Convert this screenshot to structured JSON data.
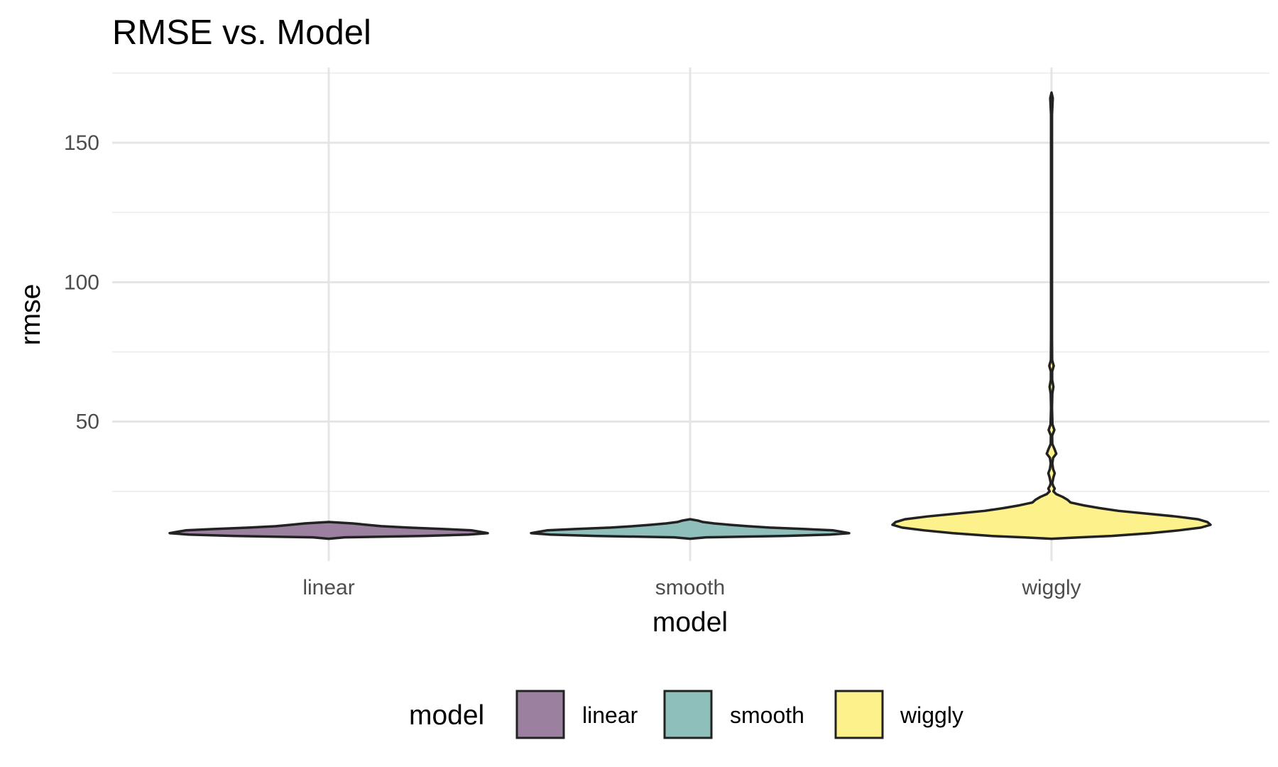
{
  "chart_data": {
    "type": "violin",
    "title": "RMSE vs. Model",
    "xlabel": "model",
    "ylabel": "rmse",
    "categories": [
      "linear",
      "smooth",
      "wiggly"
    ],
    "ylim": [
      0,
      177
    ],
    "yticks": [
      50,
      100,
      150
    ],
    "grid": true,
    "legend": {
      "title": "model",
      "position": "bottom",
      "entries": [
        "linear",
        "smooth",
        "wiggly"
      ]
    },
    "colors": {
      "linear": "#9b80a0",
      "smooth": "#8ebfbb",
      "wiggly": "#fdf18b",
      "outline": "#222222",
      "grid_major": "#e5e5e5",
      "grid_minor": "#efefef"
    },
    "series": [
      {
        "name": "linear",
        "density": [
          [
            8.0,
            0.0
          ],
          [
            8.5,
            0.1
          ],
          [
            9.0,
            0.6
          ],
          [
            9.5,
            0.88
          ],
          [
            10.0,
            1.0
          ],
          [
            10.5,
            0.95
          ],
          [
            11.0,
            0.9
          ],
          [
            11.5,
            0.72
          ],
          [
            12.0,
            0.5
          ],
          [
            12.5,
            0.33
          ],
          [
            13.0,
            0.24
          ],
          [
            13.5,
            0.15
          ],
          [
            14.0,
            0.0
          ]
        ]
      },
      {
        "name": "smooth",
        "density": [
          [
            8.0,
            0.0
          ],
          [
            8.5,
            0.1
          ],
          [
            9.0,
            0.6
          ],
          [
            9.5,
            0.88
          ],
          [
            10.0,
            1.0
          ],
          [
            10.5,
            0.95
          ],
          [
            11.0,
            0.9
          ],
          [
            11.5,
            0.72
          ],
          [
            12.0,
            0.5
          ],
          [
            12.5,
            0.36
          ],
          [
            13.0,
            0.25
          ],
          [
            13.5,
            0.15
          ],
          [
            14.0,
            0.08
          ],
          [
            14.5,
            0.05
          ],
          [
            15.0,
            0.0
          ]
        ]
      },
      {
        "name": "wiggly",
        "density": [
          [
            8.0,
            0.0
          ],
          [
            8.5,
            0.18
          ],
          [
            9.0,
            0.38
          ],
          [
            10.0,
            0.62
          ],
          [
            11.0,
            0.8
          ],
          [
            12.0,
            0.94
          ],
          [
            13.0,
            1.0
          ],
          [
            14.0,
            0.98
          ],
          [
            15.0,
            0.92
          ],
          [
            16.0,
            0.78
          ],
          [
            17.0,
            0.6
          ],
          [
            18.0,
            0.42
          ],
          [
            19.0,
            0.3
          ],
          [
            20.0,
            0.2
          ],
          [
            21.0,
            0.12
          ],
          [
            22.0,
            0.1
          ],
          [
            23.0,
            0.07
          ],
          [
            24.0,
            0.03
          ],
          [
            25.0,
            0.012
          ],
          [
            26.0,
            0.02
          ],
          [
            27.0,
            0.01
          ],
          [
            28.0,
            0.005
          ],
          [
            30.0,
            0.012
          ],
          [
            31.5,
            0.02
          ],
          [
            33.0,
            0.01
          ],
          [
            35.0,
            0.005
          ],
          [
            37.0,
            0.01
          ],
          [
            38.5,
            0.03
          ],
          [
            40.0,
            0.02
          ],
          [
            42.0,
            0.005
          ],
          [
            45.0,
            0.004
          ],
          [
            47.0,
            0.018
          ],
          [
            49.0,
            0.006
          ],
          [
            55.0,
            0.003
          ],
          [
            60.0,
            0.005
          ],
          [
            62.5,
            0.012
          ],
          [
            65.0,
            0.004
          ],
          [
            68.0,
            0.004
          ],
          [
            70.0,
            0.014
          ],
          [
            72.0,
            0.004
          ],
          [
            80.0,
            0.003
          ],
          [
            100.0,
            0.003
          ],
          [
            120.0,
            0.003
          ],
          [
            140.0,
            0.003
          ],
          [
            160.0,
            0.003
          ],
          [
            166.0,
            0.008
          ],
          [
            168.0,
            0.0
          ]
        ]
      }
    ]
  }
}
